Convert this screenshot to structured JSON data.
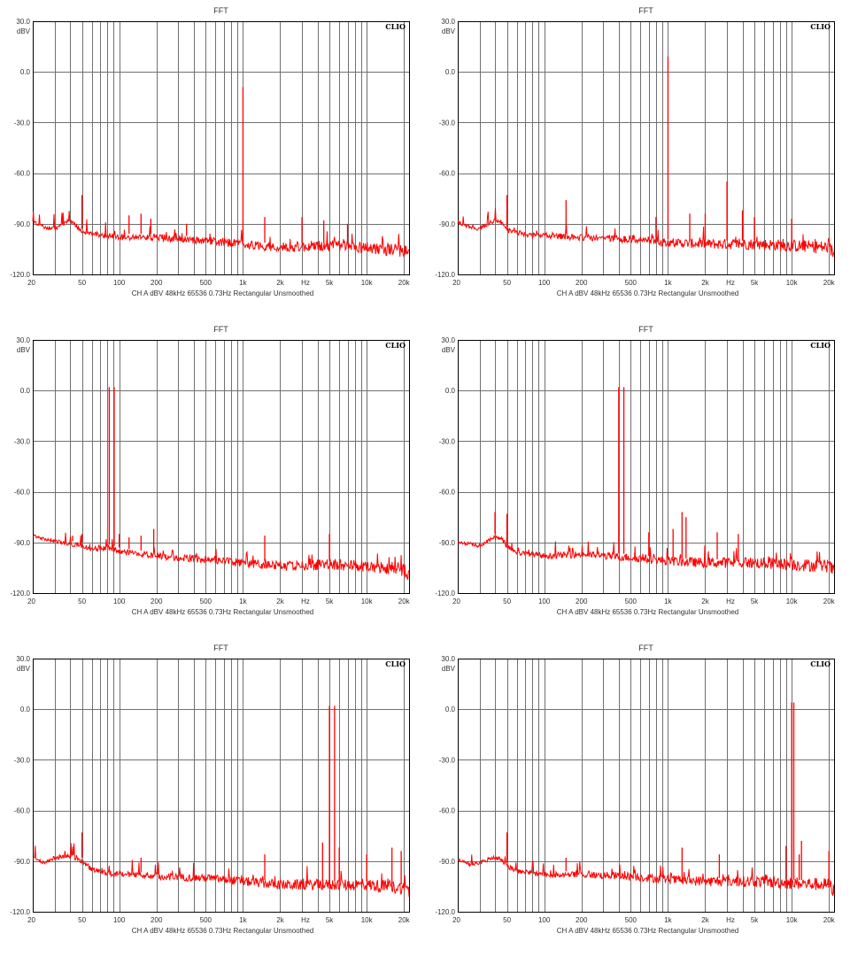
{
  "chart_data": [
    {
      "type": "line",
      "title": "FFT",
      "brand": "CLIO",
      "ylabel": "dBV",
      "xlabel": "Hz",
      "footer": "CH A   dBV   48kHz   65536   0.73Hz   Rectangular   Unsmoothed",
      "xscale": "log",
      "xlim": [
        20,
        22000
      ],
      "ylim": [
        -120,
        30
      ],
      "yticks": [
        30,
        0,
        -30,
        -60,
        -90,
        -120
      ],
      "ytick_labels": [
        "30.0",
        "0.0",
        "-30.0",
        "-60.0",
        "-90.0",
        "-120.0"
      ],
      "xticks": [
        20,
        50,
        100,
        200,
        500,
        1000,
        2000,
        5000,
        10000,
        20000
      ],
      "xtick_labels": [
        "20",
        "50",
        "100",
        "200",
        "500",
        "1k",
        "2k",
        "5k",
        "10k",
        "20k"
      ],
      "hz_label_at": 3200,
      "grid": true,
      "line_color": "#ff0000",
      "series": [
        {
          "color": "#ff0000",
          "noise": [
            [
              20,
              -89
            ],
            [
              25,
              -92
            ],
            [
              30,
              -93
            ],
            [
              40,
              -88
            ],
            [
              45,
              -91
            ],
            [
              50,
              -95
            ],
            [
              60,
              -96
            ],
            [
              80,
              -97
            ],
            [
              100,
              -98
            ],
            [
              200,
              -98
            ],
            [
              500,
              -100
            ],
            [
              1000,
              -102
            ],
            [
              2000,
              -104
            ],
            [
              5000,
              -103
            ],
            [
              10000,
              -104
            ],
            [
              20000,
              -106
            ],
            [
              22000,
              -108
            ]
          ],
          "peaks": [
            [
              1000,
              -9
            ],
            [
              50,
              -73
            ],
            [
              120,
              -85
            ],
            [
              150,
              -84
            ],
            [
              1500,
              -86
            ],
            [
              3000,
              -86
            ],
            [
              180,
              -87
            ],
            [
              4500,
              -88
            ],
            [
              7000,
              -90
            ],
            [
              350,
              -90
            ]
          ]
        }
      ]
    },
    {
      "type": "line",
      "title": "FFT",
      "brand": "CLIO",
      "ylabel": "dBV",
      "xlabel": "Hz",
      "footer": "CH A   dBV   48kHz   65536   0.73Hz   Rectangular   Unsmoothed",
      "xscale": "log",
      "xlim": [
        20,
        22000
      ],
      "ylim": [
        -120,
        30
      ],
      "yticks": [
        30,
        0,
        -30,
        -60,
        -90,
        -120
      ],
      "ytick_labels": [
        "30.0",
        "0.0",
        "-30.0",
        "-60.0",
        "-90.0",
        "-120.0"
      ],
      "xticks": [
        20,
        50,
        100,
        200,
        500,
        1000,
        2000,
        5000,
        10000,
        20000
      ],
      "xtick_labels": [
        "20",
        "50",
        "100",
        "200",
        "500",
        "1k",
        "2k",
        "5k",
        "10k",
        "20k"
      ],
      "hz_label_at": 3200,
      "grid": true,
      "line_color": "#ff0000",
      "series": [
        {
          "color": "#ff0000",
          "noise": [
            [
              20,
              -89
            ],
            [
              25,
              -92
            ],
            [
              30,
              -93
            ],
            [
              40,
              -88
            ],
            [
              45,
              -89
            ],
            [
              50,
              -94
            ],
            [
              60,
              -95
            ],
            [
              80,
              -97
            ],
            [
              100,
              -97
            ],
            [
              200,
              -98
            ],
            [
              500,
              -99
            ],
            [
              1000,
              -101
            ],
            [
              2000,
              -102
            ],
            [
              5000,
              -102
            ],
            [
              10000,
              -103
            ],
            [
              20000,
              -104
            ],
            [
              22000,
              -108
            ]
          ],
          "peaks": [
            [
              1000,
              9
            ],
            [
              3000,
              -65
            ],
            [
              50,
              -73
            ],
            [
              150,
              -76
            ],
            [
              2000,
              -84
            ],
            [
              1500,
              -84
            ],
            [
              4000,
              -82
            ],
            [
              5000,
              -86
            ],
            [
              10000,
              -87
            ],
            [
              800,
              -86
            ]
          ]
        }
      ]
    },
    {
      "type": "line",
      "title": "FFT",
      "brand": "CLIO",
      "ylabel": "dBV",
      "xlabel": "Hz",
      "footer": "CH A   dBV   48kHz   65536   0.73Hz   Rectangular   Unsmoothed",
      "xscale": "log",
      "xlim": [
        20,
        22000
      ],
      "ylim": [
        -120,
        30
      ],
      "yticks": [
        30,
        0,
        -30,
        -60,
        -90,
        -120
      ],
      "ytick_labels": [
        "30.0",
        "0.0",
        "-30.0",
        "-60.0",
        "-90.0",
        "-120.0"
      ],
      "xticks": [
        20,
        50,
        100,
        200,
        500,
        1000,
        2000,
        5000,
        10000,
        20000
      ],
      "xtick_labels": [
        "20",
        "50",
        "100",
        "200",
        "500",
        "1k",
        "2k",
        "5k",
        "10k",
        "20k"
      ],
      "hz_label_at": 3200,
      "grid": true,
      "line_color": "#ff0000",
      "series": [
        {
          "color": "#ff0000",
          "noise": [
            [
              20,
              -86
            ],
            [
              25,
              -88
            ],
            [
              30,
              -89
            ],
            [
              40,
              -91
            ],
            [
              50,
              -92
            ],
            [
              60,
              -94
            ],
            [
              80,
              -93
            ],
            [
              100,
              -95
            ],
            [
              200,
              -98
            ],
            [
              500,
              -100
            ],
            [
              1000,
              -102
            ],
            [
              2000,
              -104
            ],
            [
              5000,
              -103
            ],
            [
              10000,
              -104
            ],
            [
              20000,
              -106
            ],
            [
              22000,
              -109
            ]
          ],
          "peaks": [
            [
              83,
              2
            ],
            [
              91,
              2
            ],
            [
              50,
              -85
            ],
            [
              42,
              -86
            ],
            [
              100,
              -85
            ],
            [
              120,
              -87
            ],
            [
              150,
              -86
            ],
            [
              190,
              -82
            ],
            [
              1500,
              -86
            ],
            [
              5000,
              -85
            ]
          ]
        }
      ]
    },
    {
      "type": "line",
      "title": "FFT",
      "brand": "CLIO",
      "ylabel": "dBV",
      "xlabel": "Hz",
      "footer": "CH A   dBV   48kHz   65536   0.73Hz   Rectangular   Unsmoothed",
      "xscale": "log",
      "xlim": [
        20,
        22000
      ],
      "ylim": [
        -120,
        30
      ],
      "yticks": [
        30,
        0,
        -30,
        -60,
        -90,
        -120
      ],
      "ytick_labels": [
        "30.0",
        "0.0",
        "-30.0",
        "-60.0",
        "-90.0",
        "-120.0"
      ],
      "xticks": [
        20,
        50,
        100,
        200,
        500,
        1000,
        2000,
        5000,
        10000,
        20000
      ],
      "xtick_labels": [
        "20",
        "50",
        "100",
        "200",
        "500",
        "1k",
        "2k",
        "5k",
        "10k",
        "20k"
      ],
      "hz_label_at": 3200,
      "grid": true,
      "line_color": "#ff0000",
      "series": [
        {
          "color": "#ff0000",
          "noise": [
            [
              20,
              -90
            ],
            [
              25,
              -91
            ],
            [
              30,
              -92
            ],
            [
              40,
              -87
            ],
            [
              45,
              -88
            ],
            [
              50,
              -92
            ],
            [
              60,
              -96
            ],
            [
              80,
              -97
            ],
            [
              100,
              -98
            ],
            [
              200,
              -97
            ],
            [
              500,
              -99
            ],
            [
              1000,
              -101
            ],
            [
              2000,
              -102
            ],
            [
              5000,
              -102
            ],
            [
              10000,
              -103
            ],
            [
              20000,
              -104
            ],
            [
              22000,
              -107
            ]
          ],
          "peaks": [
            [
              400,
              2
            ],
            [
              440,
              2
            ],
            [
              40,
              -72
            ],
            [
              50,
              -73
            ],
            [
              1300,
              -72
            ],
            [
              1400,
              -75
            ],
            [
              1100,
              -82
            ],
            [
              700,
              -84
            ],
            [
              2500,
              -84
            ],
            [
              3700,
              -85
            ]
          ]
        }
      ]
    },
    {
      "type": "line",
      "title": "FFT",
      "brand": "CLIO",
      "ylabel": "dBV",
      "xlabel": "Hz",
      "footer": "CH A   dBV   48kHz   65536   0.73Hz   Rectangular   Unsmoothed",
      "xscale": "log",
      "xlim": [
        20,
        22000
      ],
      "ylim": [
        -120,
        30
      ],
      "yticks": [
        30,
        0,
        -30,
        -60,
        -90,
        -120
      ],
      "ytick_labels": [
        "30.0",
        "0.0",
        "-30.0",
        "-60.0",
        "-90.0",
        "-120.0"
      ],
      "xticks": [
        20,
        50,
        100,
        200,
        500,
        1000,
        2000,
        5000,
        10000,
        20000
      ],
      "xtick_labels": [
        "20",
        "50",
        "100",
        "200",
        "500",
        "1k",
        "2k",
        "5k",
        "10k",
        "20k"
      ],
      "hz_label_at": 3200,
      "grid": true,
      "line_color": "#ff0000",
      "series": [
        {
          "color": "#ff0000",
          "noise": [
            [
              20,
              -88
            ],
            [
              25,
              -91
            ],
            [
              30,
              -88
            ],
            [
              40,
              -87
            ],
            [
              50,
              -90
            ],
            [
              60,
              -95
            ],
            [
              80,
              -97
            ],
            [
              100,
              -98
            ],
            [
              200,
              -99
            ],
            [
              500,
              -100
            ],
            [
              1000,
              -102
            ],
            [
              2000,
              -104
            ],
            [
              5000,
              -104
            ],
            [
              10000,
              -104
            ],
            [
              20000,
              -106
            ],
            [
              22000,
              -108
            ]
          ],
          "peaks": [
            [
              5000,
              2
            ],
            [
              5500,
              2
            ],
            [
              50,
              -73
            ],
            [
              4400,
              -79
            ],
            [
              6000,
              -82
            ],
            [
              16000,
              -82
            ],
            [
              19000,
              -84
            ],
            [
              150,
              -88
            ],
            [
              1500,
              -86
            ],
            [
              10000,
              -86
            ]
          ]
        }
      ]
    },
    {
      "type": "line",
      "title": "FFT",
      "brand": "CLIO",
      "ylabel": "dBV",
      "xlabel": "Hz",
      "footer": "CH A   dBV   48kHz   65536   0.73Hz   Rectangular   Unsmoothed",
      "xscale": "log",
      "xlim": [
        20,
        22000
      ],
      "ylim": [
        -120,
        30
      ],
      "yticks": [
        30,
        0,
        -30,
        -60,
        -90,
        -120
      ],
      "ytick_labels": [
        "30.0",
        "0.0",
        "-30.0",
        "-60.0",
        "-90.0",
        "-120.0"
      ],
      "xticks": [
        20,
        50,
        100,
        200,
        500,
        1000,
        2000,
        5000,
        10000,
        20000
      ],
      "xtick_labels": [
        "20",
        "50",
        "100",
        "200",
        "500",
        "1k",
        "2k",
        "5k",
        "10k",
        "20k"
      ],
      "hz_label_at": 3200,
      "grid": true,
      "line_color": "#ff0000",
      "series": [
        {
          "color": "#ff0000",
          "noise": [
            [
              20,
              -89
            ],
            [
              25,
              -92
            ],
            [
              30,
              -91
            ],
            [
              40,
              -88
            ],
            [
              45,
              -89
            ],
            [
              50,
              -93
            ],
            [
              60,
              -96
            ],
            [
              80,
              -97
            ],
            [
              100,
              -98
            ],
            [
              200,
              -98
            ],
            [
              500,
              -99
            ],
            [
              1000,
              -101
            ],
            [
              2000,
              -102
            ],
            [
              5000,
              -102
            ],
            [
              10000,
              -103
            ],
            [
              20000,
              -104
            ],
            [
              22000,
              -108
            ]
          ],
          "peaks": [
            [
              10000,
              4
            ],
            [
              10400,
              4
            ],
            [
              50,
              -73
            ],
            [
              12000,
              -78
            ],
            [
              1300,
              -82
            ],
            [
              9000,
              -81
            ],
            [
              11500,
              -86
            ],
            [
              2600,
              -86
            ],
            [
              20000,
              -84
            ],
            [
              150,
              -88
            ]
          ]
        }
      ]
    }
  ]
}
